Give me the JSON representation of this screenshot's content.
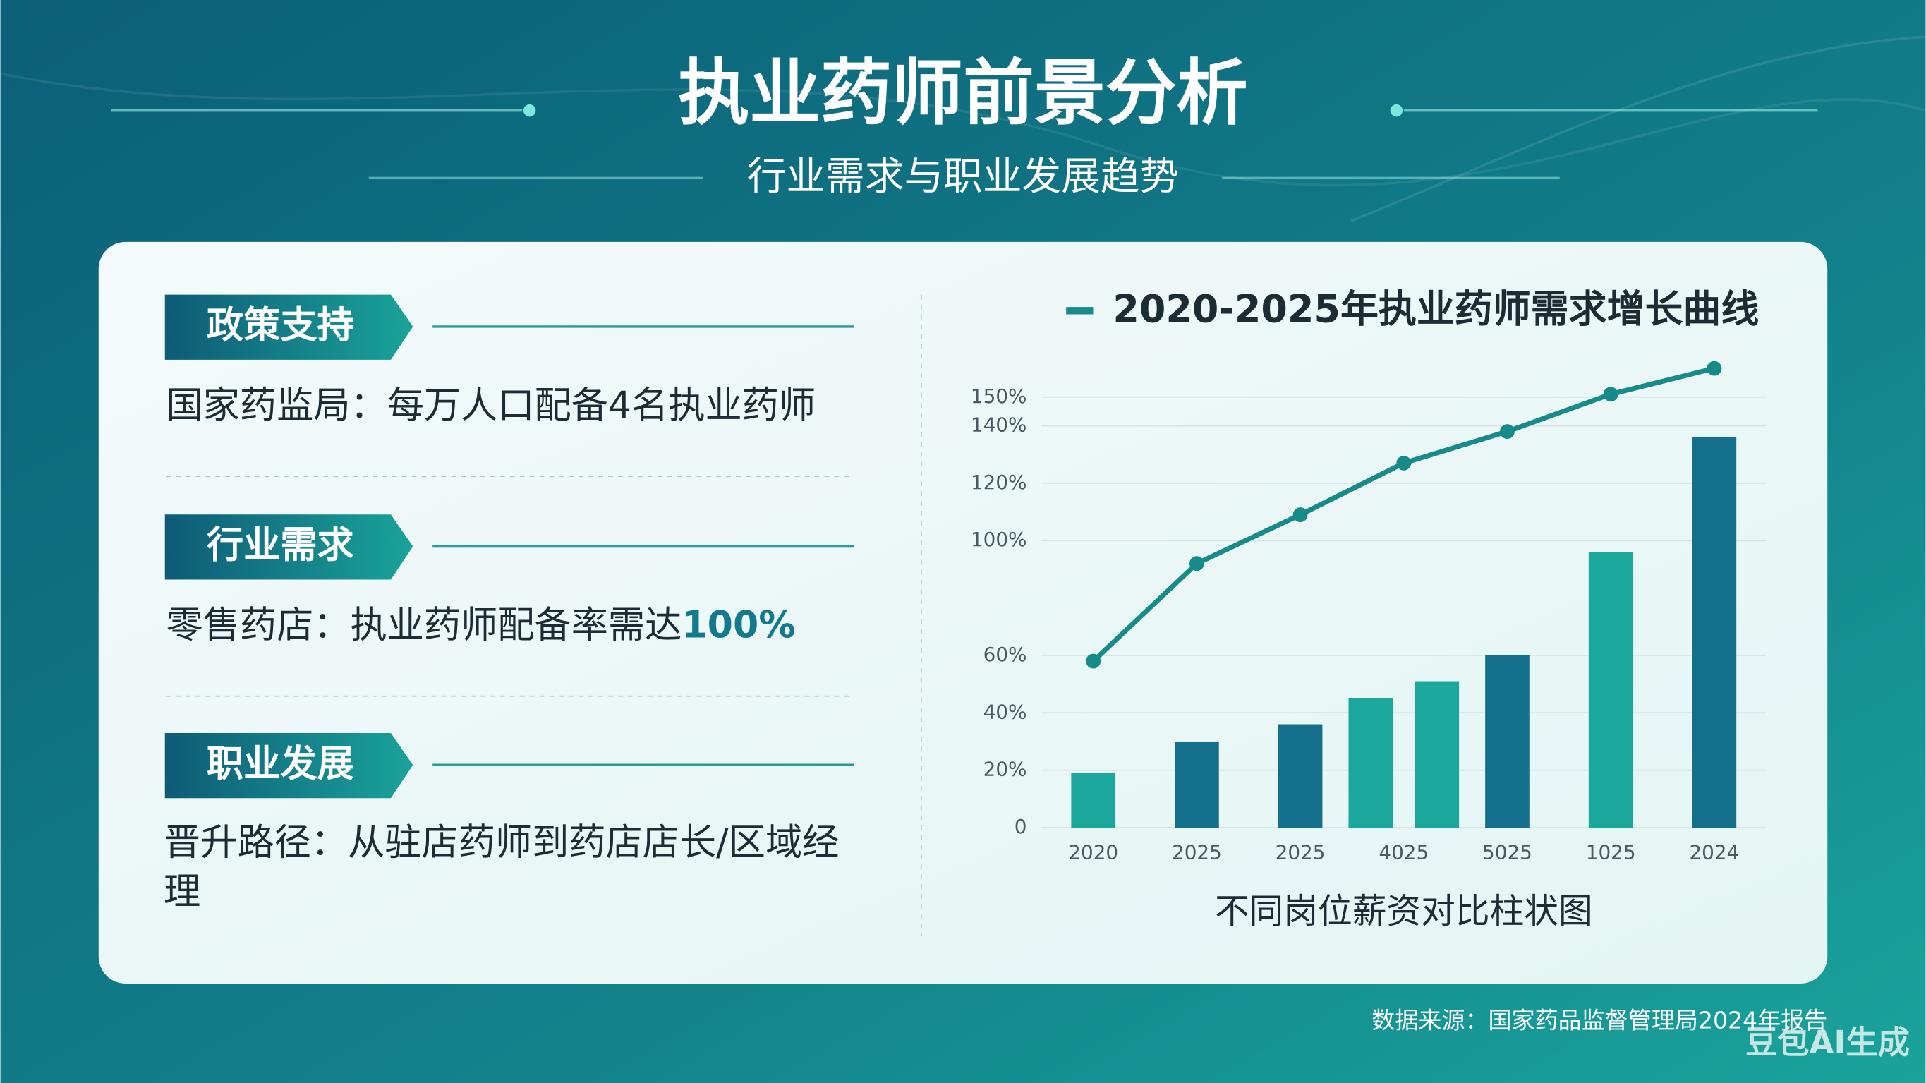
{
  "header": {
    "title": "执业药师前景分析",
    "subtitle": "行业需求与职业发展趋势"
  },
  "sections": [
    {
      "tag": "政策支持",
      "text": "国家药监局：每万人口配备4名执业药师"
    },
    {
      "tag": "行业需求",
      "text": "零售药店：执业药师配备率需达",
      "highlight": "100%"
    },
    {
      "tag": "职业发展",
      "text": "晋升路径：从驻店药师到药店店长/区域经理"
    }
  ],
  "chart_data": {
    "type": "bar",
    "categories": [
      "2020",
      "2025",
      "2025",
      "4025",
      "5025",
      "1025",
      "2024"
    ],
    "series": [
      {
        "colors": [
          "#1ba79b",
          "#136f8c",
          "#136f8c",
          "#1ba79b",
          "#136f8c",
          "#1ba79b",
          "#136f8c"
        ],
        "values": [
          19,
          30,
          36,
          45,
          60,
          96,
          136
        ]
      },
      {
        "color": "#1ba79b",
        "values": [
          null,
          null,
          null,
          51,
          null,
          null,
          null
        ]
      },
      {
        "type": "line",
        "name": "2020-2025年执业药师需求增长曲线",
        "color": "#178a8a",
        "values": [
          58,
          92,
          109,
          127,
          138,
          151,
          160
        ]
      }
    ],
    "ylim": [
      0,
      160
    ],
    "yticks": [
      {
        "value": 140,
        "label": "140%"
      },
      {
        "value": 150,
        "label": "150%"
      },
      {
        "value": 120,
        "label": "120%"
      },
      {
        "value": 100,
        "label": "100%"
      },
      {
        "value": 60,
        "label": "60%"
      },
      {
        "value": 40,
        "label": "40%"
      },
      {
        "value": 20,
        "label": "20%"
      },
      0
    ],
    "grid": true,
    "xlabel": "不同岗位薪资对比柱状图"
  },
  "footer": {
    "source": "数据来源：国家药品监督管理局2024年报告",
    "watermark": "豆包AI生成"
  }
}
